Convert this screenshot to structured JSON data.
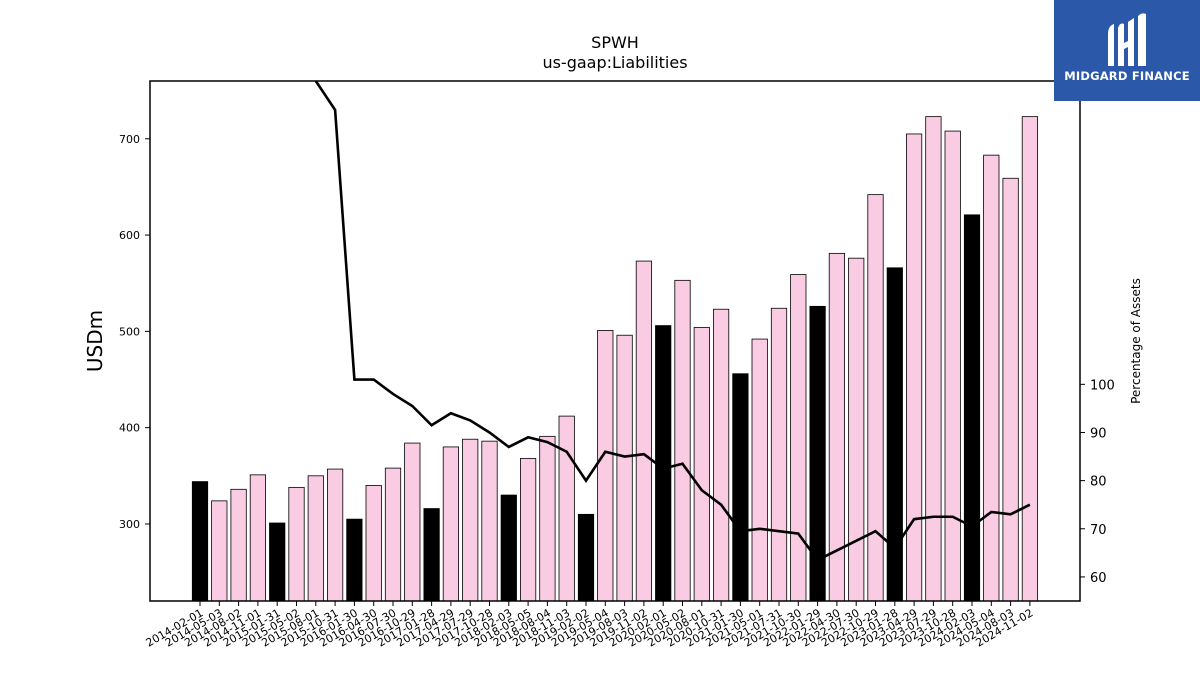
{
  "brand": {
    "name": "MIDGARD FINANCE",
    "bg_color": "#2b58a8"
  },
  "chart_data": {
    "type": "bar",
    "title": "SPWH",
    "subtitle": "us-gaap:Liabilities",
    "ylabel": "USDm",
    "y2label": "Percentage of Assets",
    "ylim": [
      220,
      760
    ],
    "y2lim": [
      55,
      163
    ],
    "yticks": [
      300,
      400,
      500,
      600,
      700
    ],
    "y2ticks": [
      60,
      70,
      80,
      90,
      100
    ],
    "colors": {
      "annual_bar": "#000000",
      "quarter_bar": "#f9cce3",
      "line": "#000000"
    },
    "categories": [
      "2014-02-01",
      "2014-05-03",
      "2014-08-02",
      "2014-11-01",
      "2015-01-31",
      "2015-05-02",
      "2015-08-01",
      "2015-10-31",
      "2016-01-30",
      "2016-04-30",
      "2016-07-30",
      "2016-10-29",
      "2017-01-28",
      "2017-04-29",
      "2017-07-29",
      "2017-10-28",
      "2018-02-03",
      "2018-05-05",
      "2018-08-04",
      "2018-11-03",
      "2019-02-02",
      "2019-05-04",
      "2019-08-03",
      "2019-11-02",
      "2020-02-01",
      "2020-05-02",
      "2020-08-01",
      "2020-10-31",
      "2021-01-30",
      "2021-05-01",
      "2021-07-31",
      "2021-10-30",
      "2022-01-29",
      "2022-04-30",
      "2022-07-30",
      "2022-10-29",
      "2023-01-28",
      "2023-04-29",
      "2023-07-29",
      "2023-10-28",
      "2024-02-03",
      "2024-05-04",
      "2024-08-03",
      "2024-11-02"
    ],
    "series": [
      {
        "kind": "bar",
        "values": [
          344,
          324,
          336,
          351,
          301,
          338,
          350,
          357,
          305,
          340,
          358,
          384,
          316,
          380,
          388,
          386,
          330,
          368,
          391,
          412,
          310,
          501,
          496,
          573,
          506,
          553,
          504,
          523,
          456,
          492,
          524,
          559,
          526,
          581,
          576,
          642,
          566,
          705,
          723,
          708,
          621,
          683,
          659,
          723
        ],
        "annual": [
          true,
          false,
          false,
          false,
          true,
          false,
          false,
          false,
          true,
          false,
          false,
          false,
          true,
          false,
          false,
          false,
          true,
          false,
          false,
          false,
          true,
          false,
          false,
          false,
          true,
          false,
          false,
          false,
          true,
          false,
          false,
          false,
          true,
          false,
          false,
          false,
          true,
          false,
          false,
          false,
          true,
          false,
          false,
          false
        ]
      },
      {
        "kind": "line",
        "axis": "right",
        "values": [
          null,
          null,
          null,
          null,
          null,
          null,
          163,
          157,
          101,
          101,
          98,
          95.5,
          91.5,
          94,
          92.5,
          90,
          87,
          89,
          88,
          86,
          80,
          86,
          85,
          85.5,
          82.5,
          83.5,
          78,
          75,
          69.5,
          70,
          69.5,
          69,
          63.5,
          65.5,
          67.5,
          69.5,
          66,
          72,
          72.5,
          72.5,
          70.5,
          73.5,
          73,
          75
        ]
      }
    ]
  }
}
